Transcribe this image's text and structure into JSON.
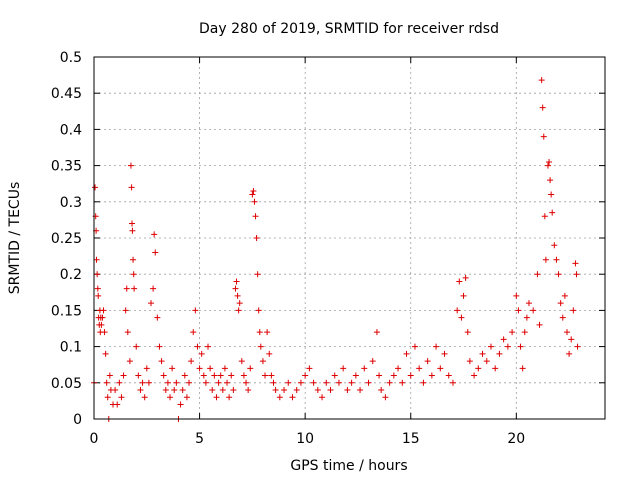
{
  "chart_data": {
    "type": "scatter",
    "title": "Day 280 of 2019, SRMTID for receiver rdsd",
    "xlabel": "GPS time / hours",
    "ylabel": "SRMTID / TECUs",
    "xlim": [
      0,
      24.2
    ],
    "ylim": [
      0,
      0.5
    ],
    "xticks": [
      0,
      5,
      10,
      15,
      20
    ],
    "xtick_labels": [
      "0",
      "5",
      "10",
      "15",
      "20"
    ],
    "yticks": [
      0,
      0.05,
      0.1,
      0.15,
      0.2,
      0.25,
      0.3,
      0.35,
      0.4,
      0.45,
      0.5
    ],
    "ytick_labels": [
      "0",
      "0.05",
      "0.1",
      "0.15",
      "0.2",
      "0.25",
      "0.3",
      "0.35",
      "0.4",
      "0.45",
      "0.5"
    ],
    "grid": true,
    "marker": "+",
    "color": "#dd0000",
    "series": [
      {
        "name": "SRMTID",
        "points": [
          [
            0.0,
            0.05
          ],
          [
            0.05,
            0.32
          ],
          [
            0.08,
            0.28
          ],
          [
            0.1,
            0.26
          ],
          [
            0.12,
            0.22
          ],
          [
            0.15,
            0.2
          ],
          [
            0.18,
            0.18
          ],
          [
            0.2,
            0.17
          ],
          [
            0.22,
            0.14
          ],
          [
            0.25,
            0.13
          ],
          [
            0.28,
            0.15
          ],
          [
            0.3,
            0.12
          ],
          [
            0.32,
            0.14
          ],
          [
            0.35,
            0.13
          ],
          [
            0.4,
            0.14
          ],
          [
            0.45,
            0.15
          ],
          [
            0.5,
            0.12
          ],
          [
            0.55,
            0.09
          ],
          [
            0.6,
            0.05
          ],
          [
            0.65,
            0.03
          ],
          [
            0.7,
            0.0
          ],
          [
            0.75,
            0.06
          ],
          [
            0.8,
            0.04
          ],
          [
            0.9,
            0.02
          ],
          [
            1.0,
            0.04
          ],
          [
            1.1,
            0.02
          ],
          [
            1.2,
            0.05
          ],
          [
            1.3,
            0.03
          ],
          [
            1.4,
            0.06
          ],
          [
            1.5,
            0.15
          ],
          [
            1.55,
            0.18
          ],
          [
            1.6,
            0.12
          ],
          [
            1.7,
            0.08
          ],
          [
            1.75,
            0.35
          ],
          [
            1.78,
            0.32
          ],
          [
            1.8,
            0.27
          ],
          [
            1.82,
            0.26
          ],
          [
            1.85,
            0.22
          ],
          [
            1.88,
            0.2
          ],
          [
            1.9,
            0.18
          ],
          [
            2.0,
            0.1
          ],
          [
            2.1,
            0.06
          ],
          [
            2.2,
            0.04
          ],
          [
            2.3,
            0.05
          ],
          [
            2.4,
            0.03
          ],
          [
            2.5,
            0.07
          ],
          [
            2.6,
            0.05
          ],
          [
            2.7,
            0.16
          ],
          [
            2.8,
            0.18
          ],
          [
            2.85,
            0.255
          ],
          [
            2.9,
            0.23
          ],
          [
            3.0,
            0.14
          ],
          [
            3.1,
            0.1
          ],
          [
            3.2,
            0.08
          ],
          [
            3.3,
            0.06
          ],
          [
            3.4,
            0.04
          ],
          [
            3.5,
            0.05
          ],
          [
            3.6,
            0.03
          ],
          [
            3.7,
            0.07
          ],
          [
            3.8,
            0.04
          ],
          [
            3.9,
            0.05
          ],
          [
            4.0,
            0.0
          ],
          [
            4.1,
            0.02
          ],
          [
            4.2,
            0.04
          ],
          [
            4.3,
            0.06
          ],
          [
            4.4,
            0.03
          ],
          [
            4.5,
            0.05
          ],
          [
            4.6,
            0.08
          ],
          [
            4.7,
            0.12
          ],
          [
            4.8,
            0.15
          ],
          [
            4.9,
            0.1
          ],
          [
            5.0,
            0.07
          ],
          [
            5.1,
            0.09
          ],
          [
            5.2,
            0.06
          ],
          [
            5.3,
            0.05
          ],
          [
            5.4,
            0.1
          ],
          [
            5.5,
            0.07
          ],
          [
            5.6,
            0.04
          ],
          [
            5.7,
            0.06
          ],
          [
            5.8,
            0.03
          ],
          [
            5.9,
            0.05
          ],
          [
            6.0,
            0.06
          ],
          [
            6.1,
            0.04
          ],
          [
            6.2,
            0.07
          ],
          [
            6.3,
            0.05
          ],
          [
            6.4,
            0.03
          ],
          [
            6.5,
            0.06
          ],
          [
            6.6,
            0.04
          ],
          [
            6.7,
            0.18
          ],
          [
            6.75,
            0.19
          ],
          [
            6.8,
            0.17
          ],
          [
            6.85,
            0.15
          ],
          [
            6.9,
            0.16
          ],
          [
            7.0,
            0.08
          ],
          [
            7.1,
            0.06
          ],
          [
            7.2,
            0.05
          ],
          [
            7.3,
            0.04
          ],
          [
            7.4,
            0.07
          ],
          [
            7.5,
            0.31
          ],
          [
            7.55,
            0.315
          ],
          [
            7.6,
            0.3
          ],
          [
            7.65,
            0.28
          ],
          [
            7.7,
            0.25
          ],
          [
            7.75,
            0.2
          ],
          [
            7.8,
            0.15
          ],
          [
            7.85,
            0.12
          ],
          [
            7.9,
            0.1
          ],
          [
            8.0,
            0.08
          ],
          [
            8.1,
            0.06
          ],
          [
            8.2,
            0.12
          ],
          [
            8.3,
            0.09
          ],
          [
            8.4,
            0.06
          ],
          [
            8.5,
            0.05
          ],
          [
            8.6,
            0.04
          ],
          [
            8.8,
            0.03
          ],
          [
            9.0,
            0.04
          ],
          [
            9.2,
            0.05
          ],
          [
            9.4,
            0.03
          ],
          [
            9.6,
            0.04
          ],
          [
            9.8,
            0.05
          ],
          [
            10.0,
            0.06
          ],
          [
            10.2,
            0.07
          ],
          [
            10.4,
            0.05
          ],
          [
            10.6,
            0.04
          ],
          [
            10.8,
            0.03
          ],
          [
            11.0,
            0.05
          ],
          [
            11.2,
            0.04
          ],
          [
            11.4,
            0.06
          ],
          [
            11.6,
            0.05
          ],
          [
            11.8,
            0.07
          ],
          [
            12.0,
            0.04
          ],
          [
            12.2,
            0.05
          ],
          [
            12.4,
            0.06
          ],
          [
            12.6,
            0.04
          ],
          [
            12.8,
            0.07
          ],
          [
            13.0,
            0.05
          ],
          [
            13.2,
            0.08
          ],
          [
            13.4,
            0.12
          ],
          [
            13.5,
            0.06
          ],
          [
            13.6,
            0.04
          ],
          [
            13.8,
            0.03
          ],
          [
            14.0,
            0.05
          ],
          [
            14.2,
            0.06
          ],
          [
            14.4,
            0.07
          ],
          [
            14.6,
            0.05
          ],
          [
            14.8,
            0.09
          ],
          [
            15.0,
            0.06
          ],
          [
            15.2,
            0.1
          ],
          [
            15.4,
            0.07
          ],
          [
            15.6,
            0.05
          ],
          [
            15.8,
            0.08
          ],
          [
            16.0,
            0.06
          ],
          [
            16.2,
            0.1
          ],
          [
            16.4,
            0.07
          ],
          [
            16.6,
            0.09
          ],
          [
            16.8,
            0.06
          ],
          [
            17.0,
            0.05
          ],
          [
            17.2,
            0.15
          ],
          [
            17.3,
            0.19
          ],
          [
            17.4,
            0.14
          ],
          [
            17.5,
            0.17
          ],
          [
            17.6,
            0.195
          ],
          [
            17.7,
            0.12
          ],
          [
            17.8,
            0.08
          ],
          [
            18.0,
            0.06
          ],
          [
            18.2,
            0.07
          ],
          [
            18.4,
            0.09
          ],
          [
            18.6,
            0.08
          ],
          [
            18.8,
            0.1
          ],
          [
            19.0,
            0.07
          ],
          [
            19.2,
            0.09
          ],
          [
            19.4,
            0.11
          ],
          [
            19.6,
            0.1
          ],
          [
            19.8,
            0.12
          ],
          [
            20.0,
            0.17
          ],
          [
            20.1,
            0.15
          ],
          [
            20.2,
            0.1
          ],
          [
            20.3,
            0.07
          ],
          [
            20.4,
            0.12
          ],
          [
            20.5,
            0.14
          ],
          [
            20.6,
            0.16
          ],
          [
            20.8,
            0.15
          ],
          [
            21.0,
            0.2
          ],
          [
            21.1,
            0.13
          ],
          [
            21.2,
            0.468
          ],
          [
            21.25,
            0.43
          ],
          [
            21.3,
            0.39
          ],
          [
            21.35,
            0.28
          ],
          [
            21.4,
            0.22
          ],
          [
            21.5,
            0.35
          ],
          [
            21.55,
            0.355
          ],
          [
            21.6,
            0.33
          ],
          [
            21.65,
            0.31
          ],
          [
            21.7,
            0.285
          ],
          [
            21.8,
            0.24
          ],
          [
            21.9,
            0.22
          ],
          [
            22.0,
            0.2
          ],
          [
            22.1,
            0.16
          ],
          [
            22.2,
            0.14
          ],
          [
            22.3,
            0.17
          ],
          [
            22.4,
            0.12
          ],
          [
            22.5,
            0.09
          ],
          [
            22.6,
            0.11
          ],
          [
            22.7,
            0.15
          ],
          [
            22.8,
            0.215
          ],
          [
            22.85,
            0.2
          ],
          [
            22.9,
            0.1
          ]
        ]
      }
    ]
  }
}
